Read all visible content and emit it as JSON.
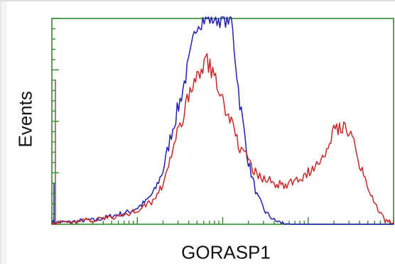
{
  "chart_data": {
    "type": "line",
    "title": "",
    "xlabel": "GORASP1",
    "ylabel": "Events",
    "x_scale": "log",
    "xlim": [
      1,
      10000
    ],
    "ylim": [
      0,
      100
    ],
    "grid": false,
    "legend": "none",
    "series": [
      {
        "color": "#1f1fb4",
        "x": [
          1,
          1.3,
          1.6,
          2,
          2.5,
          3.2,
          4,
          5,
          6.3,
          8,
          10,
          12.6,
          15.8,
          20,
          25,
          31.6,
          40,
          50,
          63,
          80,
          100,
          126,
          158,
          200,
          251,
          316,
          398,
          501,
          631,
          794,
          1000,
          1585,
          2512,
          3981,
          6310,
          10000
        ],
        "y": [
          1,
          1,
          1,
          1.5,
          2,
          2,
          3,
          4,
          5,
          6,
          8,
          11,
          16,
          26,
          44,
          60,
          78,
          98,
          100,
          100,
          100,
          100,
          60,
          30,
          14,
          6,
          2,
          0.5,
          0,
          0,
          0,
          0,
          0,
          0,
          0,
          0
        ]
      },
      {
        "color": "#c82828",
        "x": [
          1,
          1.3,
          1.6,
          2,
          2.5,
          3.2,
          4,
          5,
          6.3,
          8,
          10,
          12.6,
          15.8,
          20,
          25,
          31.6,
          40,
          50,
          63,
          80,
          100,
          126,
          158,
          200,
          251,
          316,
          398,
          501,
          631,
          794,
          1000,
          1259,
          1585,
          1995,
          2512,
          3162,
          3981,
          5012,
          6310,
          7943,
          10000
        ],
        "y": [
          0.5,
          1,
          1,
          1.5,
          2,
          2,
          3,
          3.5,
          4,
          5,
          7,
          9,
          12,
          20,
          33,
          48,
          62,
          72,
          80,
          72,
          60,
          50,
          38,
          30,
          24,
          22,
          20,
          19,
          20,
          22,
          25,
          30,
          36,
          46,
          48,
          45,
          30,
          18,
          8,
          2,
          0.5
        ]
      }
    ]
  }
}
